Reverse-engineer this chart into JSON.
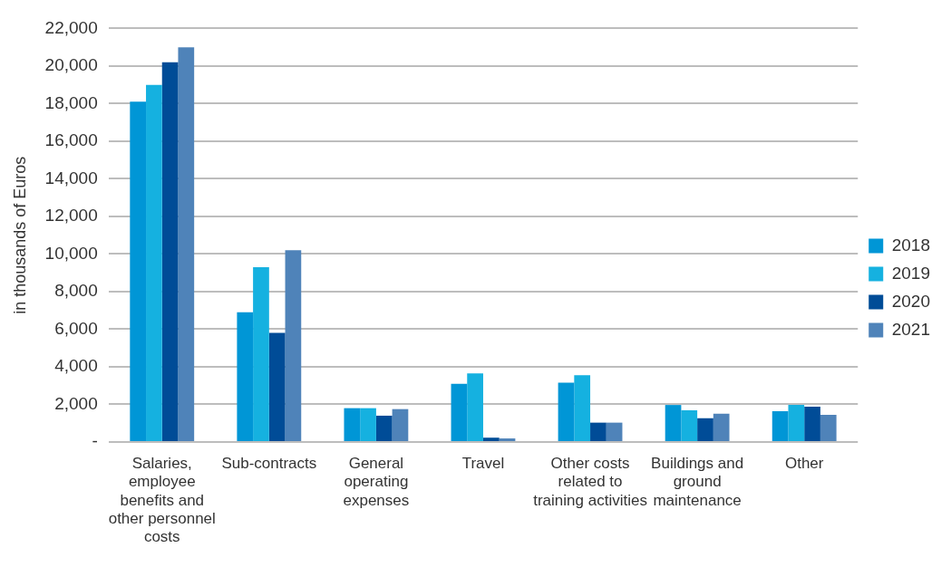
{
  "chart_data": {
    "type": "bar",
    "ylabel": "in thousands of Euros",
    "categories": [
      "Salaries, employee benefits and other personnel costs",
      "Sub-contracts",
      "General operating expenses",
      "Travel",
      "Other costs related to training activities",
      "Buildings and ground maintenance",
      "Other"
    ],
    "series": [
      {
        "name": "2018",
        "color": "#0096d6",
        "values": [
          18100,
          6900,
          1800,
          3100,
          3150,
          1970,
          1640
        ]
      },
      {
        "name": "2019",
        "color": "#15b1e0",
        "values": [
          19000,
          9300,
          1800,
          3650,
          3550,
          1690,
          1970
        ]
      },
      {
        "name": "2020",
        "color": "#004c97",
        "values": [
          20200,
          5800,
          1400,
          230,
          1030,
          1270,
          1880
        ]
      },
      {
        "name": "2021",
        "color": "#4f83b9",
        "values": [
          21000,
          10200,
          1750,
          190,
          1030,
          1500,
          1450
        ]
      }
    ],
    "ylim": [
      0,
      22000
    ],
    "yticks": [
      {
        "value": 0,
        "label": "-"
      },
      {
        "value": 2000,
        "label": "2,000"
      },
      {
        "value": 4000,
        "label": "4,000"
      },
      {
        "value": 6000,
        "label": "6,000"
      },
      {
        "value": 8000,
        "label": "8,000"
      },
      {
        "value": 10000,
        "label": "10,000"
      },
      {
        "value": 12000,
        "label": "12,000"
      },
      {
        "value": 14000,
        "label": "14,000"
      },
      {
        "value": 16000,
        "label": "16,000"
      },
      {
        "value": 18000,
        "label": "18,000"
      },
      {
        "value": 20000,
        "label": "20,000"
      },
      {
        "value": 22000,
        "label": "22,000"
      }
    ],
    "grid": "y",
    "legend": "right"
  }
}
